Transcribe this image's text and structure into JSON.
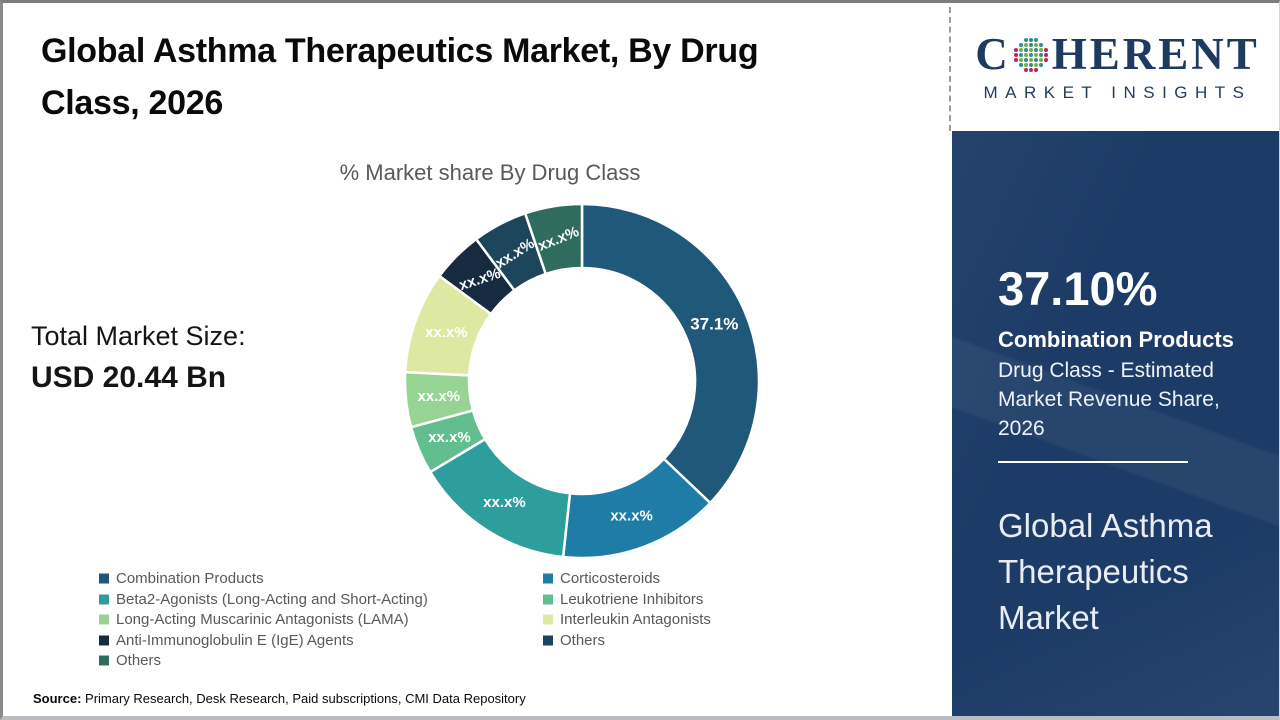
{
  "page": {
    "title_line1": "Global Asthma Therapeutics Market, By Drug",
    "title_line2": "Class, 2026",
    "source_label": "Source:",
    "source_text": " Primary Research, Desk Research, Paid subscriptions, CMI Data Repository"
  },
  "total_market": {
    "label": "Total Market Size:",
    "value": "USD 20.44 Bn"
  },
  "chart_data": {
    "type": "pie",
    "variant": "donut",
    "title": "% Market share By Drug Class",
    "unit": "%",
    "start_angle_deg": 0,
    "legend_position": "bottom",
    "segments": [
      {
        "label": "Combination Products",
        "display": "37.1%",
        "value": 37.1,
        "color": "#1F5878"
      },
      {
        "label": "Corticosteroids",
        "display": "xx.x%",
        "value": 14.6,
        "color": "#1E7CA6"
      },
      {
        "label": "Beta2-Agonists (Long-Acting and Short-Acting)",
        "display": "xx.x%",
        "value": 14.7,
        "color": "#2E9E9D"
      },
      {
        "label": "Leukotriene Inhibitors",
        "display": "xx.x%",
        "value": 4.4,
        "color": "#62BE8E"
      },
      {
        "label": "Long-Acting Muscarinic Antagonists (LAMA)",
        "display": "xx.x%",
        "value": 5.0,
        "color": "#97D395"
      },
      {
        "label": "Interleukin Antagonists",
        "display": "xx.x%",
        "value": 9.3,
        "color": "#DDE9A2"
      },
      {
        "label": "Anti-Immunoglobulin E (IgE) Agents",
        "display": "xx.x%",
        "value": 4.7,
        "color": "#162A40",
        "label_rotation": -18
      },
      {
        "label": "Others",
        "display": "xx.x%",
        "value": 5.0,
        "color": "#1D455B",
        "label_rotation": -32
      },
      {
        "label": "Others",
        "display": "xx.x%",
        "value": 5.2,
        "color": "#2F6C5F",
        "label_rotation": -22
      }
    ],
    "legend_columns": [
      [
        0,
        2,
        4,
        6,
        8
      ],
      [
        1,
        3,
        5,
        7
      ]
    ]
  },
  "sidebar": {
    "logo_prefix": "C",
    "logo_suffix": "HERENT",
    "logo_subtitle": "MARKET INSIGHTS",
    "stat_value": "37.10%",
    "stat_title": "Combination Products",
    "stat_desc": "Drug Class - Estimated Market Revenue Share, 2026",
    "panel_title": "Global Asthma Therapeutics Market"
  },
  "colors": {
    "panel_background": "#1C3B66",
    "logo_navy": "#1E3A60",
    "text_gray": "#595959",
    "label_white": "#FFFFFF"
  }
}
